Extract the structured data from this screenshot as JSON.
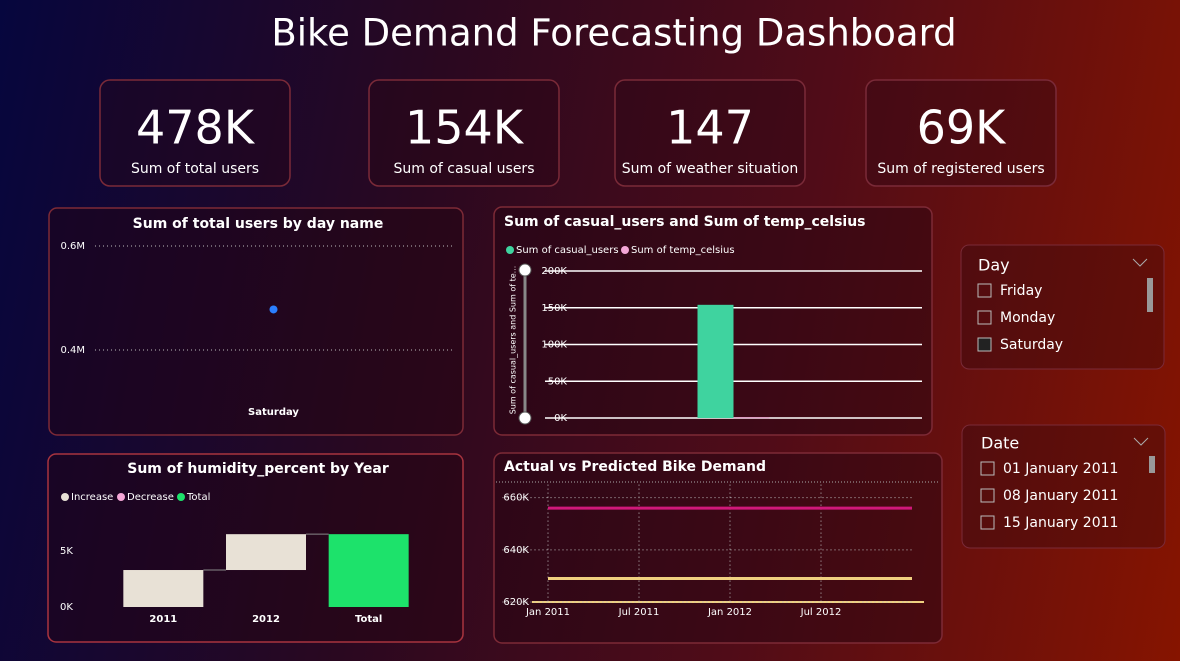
{
  "title": "Bike Demand Forecasting Dashboard",
  "kpis": [
    {
      "value": "478K",
      "label": "Sum of total users"
    },
    {
      "value": "154K",
      "label": "Sum of casual users"
    },
    {
      "value": "147",
      "label": "Sum of weather situation"
    },
    {
      "value": "69K",
      "label": "Sum of registered users"
    }
  ],
  "chart_data": [
    {
      "type": "scatter",
      "title": "Sum of total users by day name",
      "categories": [
        "Saturday"
      ],
      "values": [
        478000
      ],
      "color": "#2b7fff",
      "ylim": [
        300000,
        620000
      ],
      "yticks": [
        {
          "value": 400000,
          "label": "0.4M"
        },
        {
          "value": 600000,
          "label": "0.6M"
        }
      ],
      "grid": true
    },
    {
      "type": "bar",
      "title": "Sum of casual_users and Sum of temp_celsius",
      "y_label": "Sum of casual_users and Sum of te...",
      "categories": [
        null
      ],
      "series": [
        {
          "name": "Sum of casual_users",
          "color": "#3fd39f",
          "values": [
            154000
          ]
        },
        {
          "name": "Sum of temp_celsius",
          "color": "#f4a6d7",
          "values": [
            1000
          ]
        }
      ],
      "ylim": [
        0,
        200000
      ],
      "yticks": [
        {
          "value": 0,
          "label": "0K"
        },
        {
          "value": 50000,
          "label": "50K"
        },
        {
          "value": 100000,
          "label": "100K"
        },
        {
          "value": 150000,
          "label": "150K"
        },
        {
          "value": 200000,
          "label": "200K"
        }
      ],
      "grid": true
    },
    {
      "type": "waterfall",
      "title": "Sum of humidity_percent by Year",
      "categories": [
        "2011",
        "2012",
        "Total"
      ],
      "series": [
        {
          "name": "Increase",
          "color": "#e8e1d6",
          "values": [
            3300,
            3200,
            null
          ]
        },
        {
          "name": "Decrease",
          "color": "#f4a6d7",
          "values": [
            null,
            null,
            null
          ]
        },
        {
          "name": "Total",
          "color": "#1de26b",
          "values": [
            null,
            null,
            6500
          ]
        }
      ],
      "ylim": [
        0,
        7800
      ],
      "yticks": [
        {
          "value": 0,
          "label": "0K"
        },
        {
          "value": 5000,
          "label": "5K"
        }
      ]
    },
    {
      "type": "line",
      "title": "Actual vs Predicted Bike Demand",
      "x": [
        "2011-01",
        "2013-01"
      ],
      "series": [
        {
          "color": "#d0187a",
          "values": [
            656000,
            656000
          ]
        },
        {
          "color": "#f0d080",
          "values": [
            629000,
            629000
          ]
        }
      ],
      "xlim": [
        "2010-10",
        "2013-01"
      ],
      "xticks": [
        {
          "value": "2011-01",
          "label": "Jan 2011"
        },
        {
          "value": "2011-07",
          "label": "Jul 2011"
        },
        {
          "value": "2012-01",
          "label": "Jan 2012"
        },
        {
          "value": "2012-07",
          "label": "Jul 2012"
        }
      ],
      "ylim": [
        620000,
        665000
      ],
      "yticks": [
        {
          "value": 620000,
          "label": "620K"
        },
        {
          "value": 640000,
          "label": "640K"
        },
        {
          "value": 660000,
          "label": "660K"
        }
      ],
      "grid": true
    }
  ],
  "slicers": [
    {
      "title": "Day",
      "items": [
        "Friday",
        "Monday",
        "Saturday"
      ],
      "checked": [
        false,
        false,
        true
      ]
    },
    {
      "title": "Date",
      "items": [
        "01 January 2011",
        "08 January 2011",
        "15 January 2011"
      ],
      "checked": [
        false,
        false,
        false
      ]
    }
  ]
}
